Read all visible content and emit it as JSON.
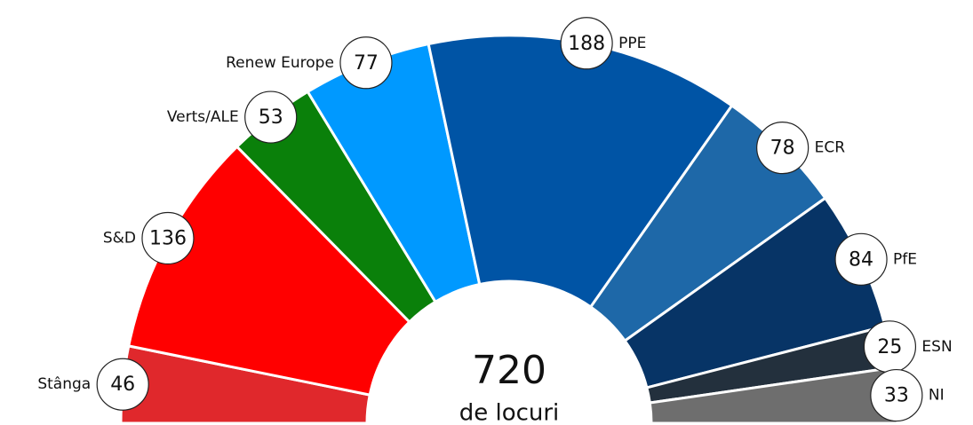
{
  "chart_data": {
    "type": "half-donut",
    "categories": [
      "Stânga",
      "S&D",
      "Verts/ALE",
      "Renew Europe",
      "PPE",
      "ECR",
      "PfE",
      "ESN",
      "NI"
    ],
    "values": [
      46,
      136,
      53,
      77,
      188,
      78,
      84,
      25,
      33
    ],
    "colors": [
      "#e0282c",
      "#ff0000",
      "#0a800a",
      "#0099ff",
      "#0054a5",
      "#1e68a8",
      "#073466",
      "#23303d",
      "#6e6e6e"
    ],
    "total": 720,
    "total_label": "de locuri"
  }
}
